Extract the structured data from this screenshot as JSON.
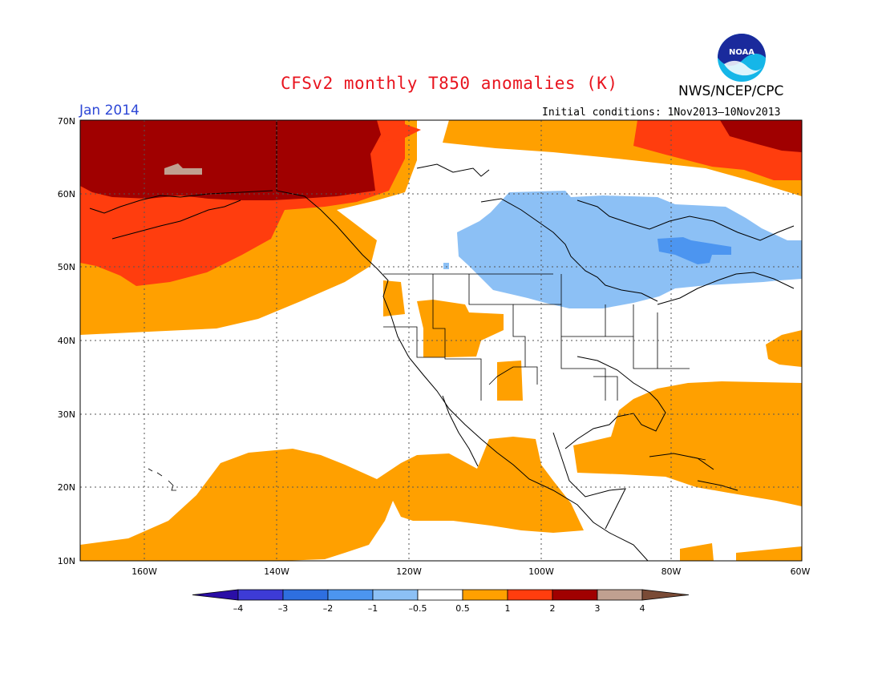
{
  "header": {
    "title": "CFSv2 monthly T850 anomalies (K)",
    "month": "Jan 2014",
    "agency": "NWS/NCEP/CPC",
    "initial_conditions": "Initial conditions: 1Nov2013–10Nov2013",
    "logo_text": "NOAA"
  },
  "axes": {
    "lat_labels": [
      "70N",
      "60N",
      "50N",
      "40N",
      "30N",
      "20N",
      "10N"
    ],
    "lon_labels": [
      "160W",
      "140W",
      "120W",
      "100W",
      "80W",
      "60W"
    ]
  },
  "colorbar": {
    "labels": [
      "–4",
      "–3",
      "–2",
      "–1",
      "–0.5",
      "0.5",
      "1",
      "2",
      "3",
      "4"
    ],
    "colors": [
      "#2a0ea6",
      "#3d3bd6",
      "#2e6fe0",
      "#4c95f0",
      "#8cc0f5",
      "#ffffff",
      "#ffa000",
      "#ff3d0e",
      "#a00000",
      "#c0a090",
      "#7a4b36"
    ]
  },
  "map": {
    "colors": {
      "plus_half": "#ffa000",
      "plus_one": "#ff3d0e",
      "plus_two": "#a00000",
      "plus_three": "#c0a090",
      "minus_half": "#8cc0f5",
      "minus_one": "#4c95f0"
    }
  }
}
